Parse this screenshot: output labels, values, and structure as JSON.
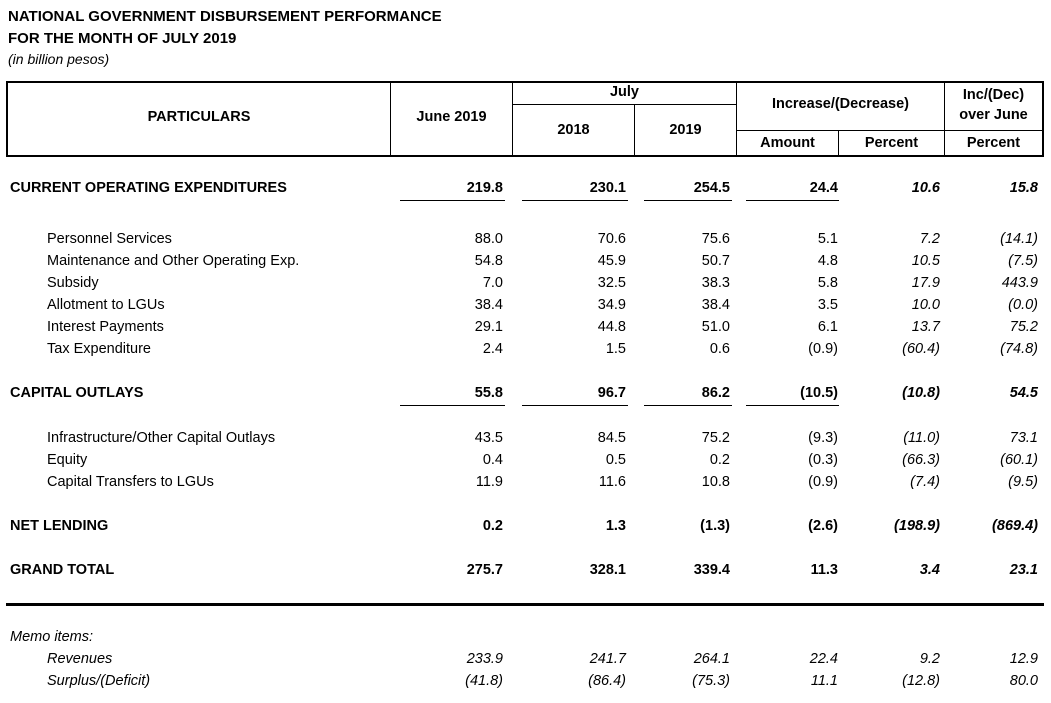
{
  "title_line1": "NATIONAL GOVERNMENT DISBURSEMENT PERFORMANCE",
  "title_line2": "FOR THE MONTH OF JULY 2019",
  "unit": "(in billion pesos)",
  "headers": {
    "particulars": "PARTICULARS",
    "june": "June 2019",
    "july": "July",
    "y2018": "2018",
    "y2019": "2019",
    "incdec": "Increase/(Decrease)",
    "amount": "Amount",
    "percent": "Percent",
    "incjune_1": "Inc/(Dec)",
    "incjune_2": "over June",
    "percent2": "Percent"
  },
  "rows": [
    {
      "label": "CURRENT OPERATING EXPENDITURES",
      "type": "major",
      "underline": true,
      "v": [
        "219.8",
        "230.1",
        "254.5",
        "24.4",
        "10.6",
        "15.8"
      ]
    },
    {
      "label": "Personnel Services",
      "type": "minor",
      "v": [
        "88.0",
        "70.6",
        "75.6",
        "5.1",
        "7.2",
        "(14.1)"
      ]
    },
    {
      "label": "Maintenance and Other Operating Exp.",
      "type": "minor",
      "v": [
        "54.8",
        "45.9",
        "50.7",
        "4.8",
        "10.5",
        "(7.5)"
      ]
    },
    {
      "label": "Subsidy",
      "type": "minor",
      "v": [
        "7.0",
        "32.5",
        "38.3",
        "5.8",
        "17.9",
        "443.9"
      ]
    },
    {
      "label": "Allotment to LGUs",
      "type": "minor",
      "v": [
        "38.4",
        "34.9",
        "38.4",
        "3.5",
        "10.0",
        "(0.0)"
      ]
    },
    {
      "label": "Interest Payments",
      "type": "minor",
      "v": [
        "29.1",
        "44.8",
        "51.0",
        "6.1",
        "13.7",
        "75.2"
      ]
    },
    {
      "label": "Tax Expenditure",
      "type": "minor",
      "v": [
        "2.4",
        "1.5",
        "0.6",
        "(0.9)",
        "(60.4)",
        "(74.8)"
      ]
    },
    {
      "label": "CAPITAL OUTLAYS",
      "type": "major",
      "underline": true,
      "v": [
        "55.8",
        "96.7",
        "86.2",
        "(10.5)",
        "(10.8)",
        "54.5"
      ]
    },
    {
      "label": "Infrastructure/Other Capital Outlays",
      "type": "minor",
      "v": [
        "43.5",
        "84.5",
        "75.2",
        "(9.3)",
        "(11.0)",
        "73.1"
      ]
    },
    {
      "label": "Equity",
      "type": "minor",
      "v": [
        "0.4",
        "0.5",
        "0.2",
        "(0.3)",
        "(66.3)",
        "(60.1)"
      ]
    },
    {
      "label": "Capital Transfers to LGUs",
      "type": "minor",
      "v": [
        "11.9",
        "11.6",
        "10.8",
        "(0.9)",
        "(7.4)",
        "(9.5)"
      ]
    },
    {
      "label": "NET LENDING",
      "type": "major",
      "v": [
        "0.2",
        "1.3",
        "(1.3)",
        "(2.6)",
        "(198.9)",
        "(869.4)"
      ]
    },
    {
      "label": "GRAND TOTAL",
      "type": "major",
      "v": [
        "275.7",
        "328.1",
        "339.4",
        "11.3",
        "3.4",
        "23.1"
      ]
    }
  ],
  "memo": {
    "heading": "Memo items:",
    "rows": [
      {
        "label": "Revenues",
        "v": [
          "233.9",
          "241.7",
          "264.1",
          "22.4",
          "9.2",
          "12.9"
        ]
      },
      {
        "label": "Surplus/(Deficit)",
        "v": [
          "(41.8)",
          "(86.4)",
          "(75.3)",
          "11.1",
          "(12.8)",
          "80.0"
        ]
      }
    ]
  }
}
